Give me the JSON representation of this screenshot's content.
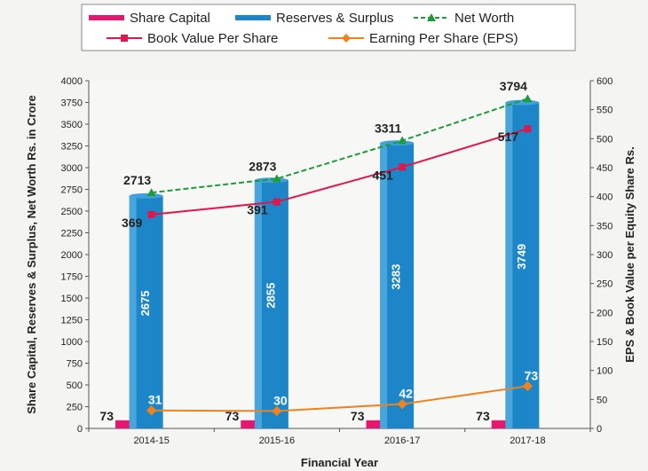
{
  "chart_data": {
    "type": "bar",
    "title": "",
    "xlabel": "Financial Year",
    "ylabel_left": "Share Capital, Reserves & Surplus, Net Worth Rs. in Crore",
    "ylabel_right": "EPS & Book Value per Equity Share Rs.",
    "categories": [
      "2014-15",
      "2015-16",
      "2016-17",
      "2017-18"
    ],
    "ylim_left": [
      0,
      4000
    ],
    "yticks_left": [
      0,
      250,
      500,
      750,
      1000,
      1250,
      1500,
      1750,
      2000,
      2250,
      2500,
      2750,
      3000,
      3250,
      3500,
      3750,
      4000
    ],
    "ylim_right": [
      0,
      600
    ],
    "yticks_right": [
      0,
      50,
      100,
      150,
      200,
      250,
      300,
      350,
      400,
      450,
      500,
      550,
      600
    ],
    "legend_position": "top",
    "series": [
      {
        "name": "Share Capital",
        "type": "bar",
        "axis": "left",
        "color": "#e6176f",
        "values": [
          73,
          73,
          73,
          73
        ],
        "labels": [
          "73",
          "73",
          "73",
          "73"
        ]
      },
      {
        "name": "Reserves & Surplus",
        "type": "bar",
        "axis": "left",
        "color": "#1c86c8",
        "values": [
          2675,
          2855,
          3283,
          3749
        ],
        "labels": [
          "2675",
          "2855",
          "3283",
          "3749"
        ]
      },
      {
        "name": "Net Worth",
        "type": "line",
        "axis": "left",
        "color": "#1e9b3a",
        "dashed": true,
        "marker": "triangle",
        "values": [
          2713,
          2873,
          3311,
          3794
        ],
        "labels": [
          "2713",
          "2873",
          "3311",
          "3794"
        ]
      },
      {
        "name": "Book Value Per Share",
        "type": "line",
        "axis": "right",
        "color": "#e0174a",
        "marker": "square",
        "values": [
          369,
          391,
          451,
          517
        ],
        "labels": [
          "369",
          "391",
          "451",
          "517"
        ]
      },
      {
        "name": "Earning Per Share (EPS)",
        "type": "line",
        "axis": "right",
        "color": "#f0821e",
        "marker": "diamond",
        "values": [
          31,
          30,
          42,
          73
        ],
        "labels": [
          "31",
          "30",
          "42",
          "73"
        ]
      }
    ]
  }
}
